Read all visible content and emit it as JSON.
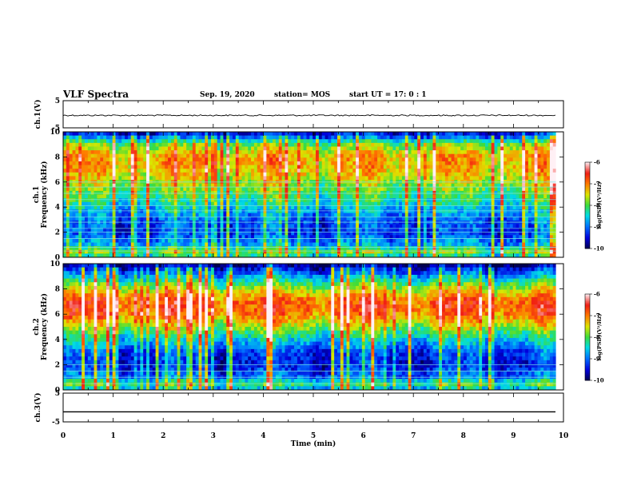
{
  "header": {
    "title": "VLF Spectra",
    "date": "Sep. 19, 2020",
    "station": "station= MOS",
    "start": "start  UT  =   17: 0   : 1"
  },
  "chart_data": [
    {
      "type": "line",
      "name": "ch1-waveform",
      "ylabel": "ch.1(V)",
      "ylim": [
        -5,
        5
      ],
      "y_ticks": [
        "5",
        "-5"
      ],
      "xlim": [
        0,
        10
      ],
      "trace_level": -0.4,
      "trace_end_min": 9.85
    },
    {
      "type": "heatmap",
      "name": "ch1-spectrogram",
      "ylabel": "ch.1 Frequency (kHz)",
      "ylabel_lines": [
        "ch.1",
        "Frequency (kHz)"
      ],
      "ylim": [
        0,
        10
      ],
      "y_ticks": [
        "0",
        "2",
        "4",
        "6",
        "8",
        "10"
      ],
      "xlim": [
        0,
        9.85
      ],
      "band_power": [
        {
          "f_khz": 0.0,
          "log_psd": -8.6
        },
        {
          "f_khz": 0.5,
          "log_psd": -7.8
        },
        {
          "f_khz": 1.0,
          "log_psd": -8.8
        },
        {
          "f_khz": 2.0,
          "log_psd": -9.3
        },
        {
          "f_khz": 3.0,
          "log_psd": -9.1
        },
        {
          "f_khz": 4.0,
          "log_psd": -8.6
        },
        {
          "f_khz": 5.0,
          "log_psd": -8.1
        },
        {
          "f_khz": 6.0,
          "log_psd": -7.7
        },
        {
          "f_khz": 7.0,
          "log_psd": -7.3
        },
        {
          "f_khz": 8.0,
          "log_psd": -7.2
        },
        {
          "f_khz": 9.0,
          "log_psd": -7.9
        },
        {
          "f_khz": 9.5,
          "log_psd": -8.9
        },
        {
          "f_khz": 10.0,
          "log_psd": -9.7
        }
      ],
      "tone_lines_khz": [
        0.5,
        0.8,
        1.5,
        2.0,
        2.3,
        2.8,
        3.2,
        3.7,
        4.1,
        4.6,
        5.1,
        5.6,
        6.0
      ],
      "colorbar": {
        "label": "log(PSD)(V²/Hz)",
        "range": [
          -10,
          -6
        ],
        "ticks": [
          "-6",
          "-7",
          "-8",
          "-9",
          "-10"
        ]
      }
    },
    {
      "type": "heatmap",
      "name": "ch2-spectrogram",
      "ylabel": "ch.2 Frequency (kHz)",
      "ylabel_lines": [
        "ch.2",
        "Frequency (kHz)"
      ],
      "ylim": [
        0,
        10
      ],
      "y_ticks": [
        "0",
        "2",
        "4",
        "6",
        "8",
        "10"
      ],
      "xlim": [
        0,
        9.85
      ],
      "band_power": [
        {
          "f_khz": 0.0,
          "log_psd": -8.8
        },
        {
          "f_khz": 0.5,
          "log_psd": -8.0
        },
        {
          "f_khz": 1.0,
          "log_psd": -9.0
        },
        {
          "f_khz": 2.0,
          "log_psd": -9.4
        },
        {
          "f_khz": 3.0,
          "log_psd": -9.2
        },
        {
          "f_khz": 4.0,
          "log_psd": -8.5
        },
        {
          "f_khz": 5.0,
          "log_psd": -7.7
        },
        {
          "f_khz": 6.0,
          "log_psd": -6.9
        },
        {
          "f_khz": 7.0,
          "log_psd": -6.8
        },
        {
          "f_khz": 8.0,
          "log_psd": -7.6
        },
        {
          "f_khz": 9.0,
          "log_psd": -8.7
        },
        {
          "f_khz": 10.0,
          "log_psd": -9.9
        }
      ],
      "tone_lines_khz": [
        0.5,
        1.0,
        1.5,
        2.0
      ],
      "colorbar": {
        "label": "log(PSD)(V²/Hz)",
        "range": [
          -10,
          -6
        ],
        "ticks": [
          "-6",
          "-7",
          "-8",
          "-9",
          "-10"
        ]
      }
    },
    {
      "type": "line",
      "name": "ch3-waveform",
      "ylabel": "ch.3(V)",
      "ylim": [
        -5,
        5
      ],
      "y_ticks": [
        "5",
        "-5"
      ],
      "xlim": [
        0,
        10
      ],
      "trace_level": -1.5,
      "trace_end_min": 9.85
    }
  ],
  "x_axis": {
    "label": "Time (min)",
    "ticks": [
      "0",
      "1",
      "2",
      "3",
      "4",
      "5",
      "6",
      "7",
      "8",
      "9",
      "10"
    ],
    "range": [
      0,
      10
    ]
  }
}
